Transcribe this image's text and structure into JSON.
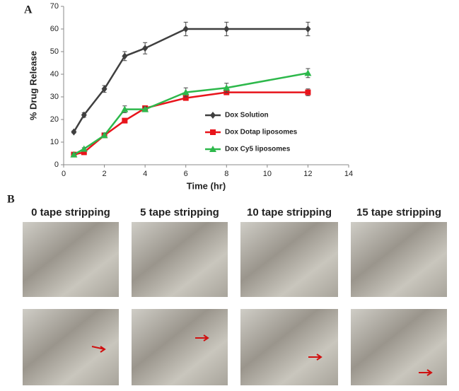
{
  "panel_a_label": "A",
  "panel_b_label": "B",
  "captions": [
    "0 tape stripping",
    "5 tape stripping",
    "10 tape stripping",
    "15 tape stripping"
  ],
  "chart_data": {
    "type": "line",
    "x_label": "Time (hr)",
    "y_label": "% Drug Release",
    "x": [
      0.5,
      1,
      2,
      3,
      4,
      6,
      8,
      12
    ],
    "xlim": [
      0,
      14
    ],
    "xticks": [
      0,
      2,
      4,
      6,
      8,
      10,
      12,
      14
    ],
    "ylim": [
      0,
      70
    ],
    "yticks": [
      0,
      10,
      20,
      30,
      40,
      50,
      60,
      70
    ],
    "grid": false,
    "series": [
      {
        "name": "Dox Solution",
        "color": "#3f3f3f",
        "marker": "diamond",
        "values": [
          14.5,
          22,
          33.5,
          48,
          51.5,
          60,
          60,
          60
        ],
        "errors": [
          0.5,
          1,
          1.5,
          2,
          2.5,
          3,
          3,
          3
        ]
      },
      {
        "name": "Dox Dotap liposomes",
        "color": "#e8141b",
        "marker": "square",
        "values": [
          4.5,
          5.5,
          13,
          19.5,
          25,
          29.5,
          32,
          32
        ],
        "errors": [
          0.5,
          0.5,
          0.5,
          0.5,
          0.5,
          1,
          1,
          1.5
        ]
      },
      {
        "name": "Dox Cy5 liposomes",
        "color": "#2db84b",
        "marker": "triangle",
        "values": [
          4.5,
          7,
          13,
          24.5,
          24.5,
          32,
          34,
          40.5
        ],
        "errors": [
          0.5,
          0.5,
          1,
          1.5,
          1,
          2,
          2,
          2
        ]
      }
    ]
  }
}
